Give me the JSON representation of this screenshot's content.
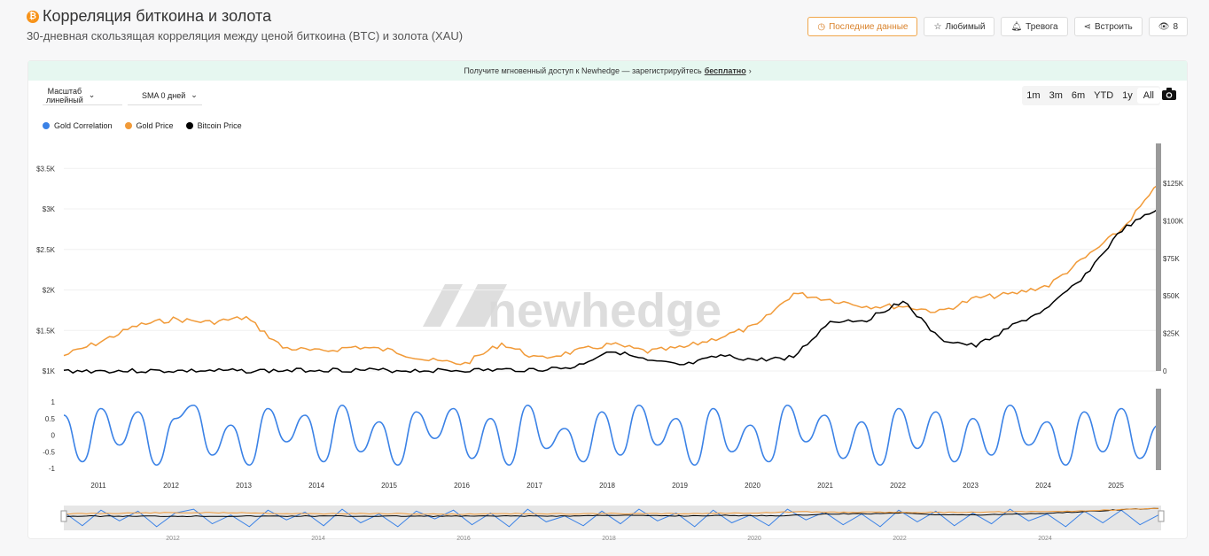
{
  "header": {
    "title": "Корреляция биткоина и золота",
    "subtitle": "30-дневная скользящая корреляция между ценой биткоина (BTC) и золота (XAU)",
    "icon": "bitcoin-icon",
    "buttons": {
      "latest": "Последние данные",
      "favorite": "Любимый",
      "alert": "Тревога",
      "embed": "Встроить",
      "views": "8"
    }
  },
  "banner": {
    "text": "Получите мгновенный доступ к Newhedge — зарегистрируйтесь",
    "link": "бесплатно"
  },
  "controls": {
    "scale_line1": "Масштаб",
    "scale_line2": "линейный",
    "sma": "SMA 0 дней",
    "ranges": [
      "1m",
      "3m",
      "6m",
      "YTD",
      "1y",
      "All"
    ],
    "active_range": "All"
  },
  "watermark": "newhedge",
  "colors": {
    "gold": "#f19a38",
    "bitcoin": "#000000",
    "correlation": "#3b82e6",
    "accent": "#d9822b"
  },
  "chart_data": [
    {
      "type": "line",
      "x": [
        "2010-07",
        "2011-01",
        "2011-07",
        "2012-01",
        "2012-07",
        "2013-01",
        "2013-07",
        "2014-01",
        "2014-07",
        "2015-01",
        "2015-07",
        "2016-01",
        "2016-07",
        "2017-01",
        "2017-07",
        "2018-01",
        "2018-07",
        "2019-01",
        "2019-07",
        "2020-01",
        "2020-07",
        "2021-01",
        "2021-07",
        "2022-01",
        "2022-07",
        "2023-01",
        "2023-07",
        "2024-01",
        "2024-07",
        "2025-01",
        "2025-07"
      ],
      "series": [
        {
          "name": "Gold Price",
          "axis": "left",
          "values": [
            1190,
            1360,
            1560,
            1640,
            1600,
            1660,
            1290,
            1240,
            1300,
            1250,
            1130,
            1090,
            1340,
            1150,
            1240,
            1330,
            1240,
            1290,
            1420,
            1560,
            1960,
            1880,
            1800,
            1800,
            1730,
            1900,
            1950,
            2060,
            2400,
            2750,
            3300
          ]
        },
        {
          "name": "Bitcoin Price",
          "axis": "right",
          "values": [
            0,
            0,
            14,
            5,
            8,
            13,
            90,
            800,
            600,
            300,
            280,
            400,
            650,
            900,
            2500,
            14000,
            6500,
            3600,
            10000,
            7200,
            9200,
            33000,
            34000,
            47000,
            21000,
            16500,
            30000,
            42000,
            64000,
            94000,
            108000
          ]
        }
      ],
      "ylim_left": [
        1000,
        3700
      ],
      "ylim_right": [
        0,
        125000
      ],
      "yticks_left": [
        "$1K",
        "$1.5K",
        "$2K",
        "$2.5K",
        "$3K",
        "$3.5K"
      ],
      "yticks_right": [
        "0",
        "$25K",
        "$50K",
        "$75K",
        "$100K",
        "$125K"
      ],
      "grid": true
    },
    {
      "type": "line",
      "series": [
        {
          "name": "Gold Correlation",
          "values": [
            0.6,
            -0.8,
            0.8,
            -0.3,
            0.7,
            -0.9,
            0.5,
            0.9,
            -0.6,
            0.3,
            -0.9,
            0.8,
            -0.2,
            0.6,
            -0.8,
            0.9,
            -0.5,
            0.4,
            -0.9,
            0.7,
            -0.1,
            0.8,
            -0.7,
            0.5,
            -0.9,
            0.9,
            -0.4,
            0.2,
            -0.8,
            0.7,
            -0.6,
            0.9,
            -0.3,
            0.5,
            -0.9,
            0.8,
            -0.5,
            0.3,
            -0.8,
            0.9,
            -0.2,
            0.6,
            -0.7,
            0.4,
            -0.9,
            0.8,
            -0.4,
            0.7,
            -0.8,
            0.5,
            -0.6,
            0.9,
            -0.3,
            0.4,
            -0.9,
            0.7,
            -0.5,
            0.8,
            -0.7,
            0.3
          ]
        }
      ],
      "ylim": [
        -1,
        1
      ],
      "yticks": [
        "1",
        "0.5",
        "0",
        "-0.5",
        "-1"
      ],
      "xticks": [
        "2011",
        "2012",
        "2013",
        "2014",
        "2015",
        "2016",
        "2017",
        "2018",
        "2019",
        "2020",
        "2021",
        "2022",
        "2023",
        "2024",
        "2025"
      ]
    }
  ],
  "navigator": {
    "xticks": [
      "2012",
      "2014",
      "2016",
      "2018",
      "2020",
      "2022",
      "2024"
    ]
  },
  "legend": [
    "Gold Correlation",
    "Gold Price",
    "Bitcoin Price"
  ]
}
